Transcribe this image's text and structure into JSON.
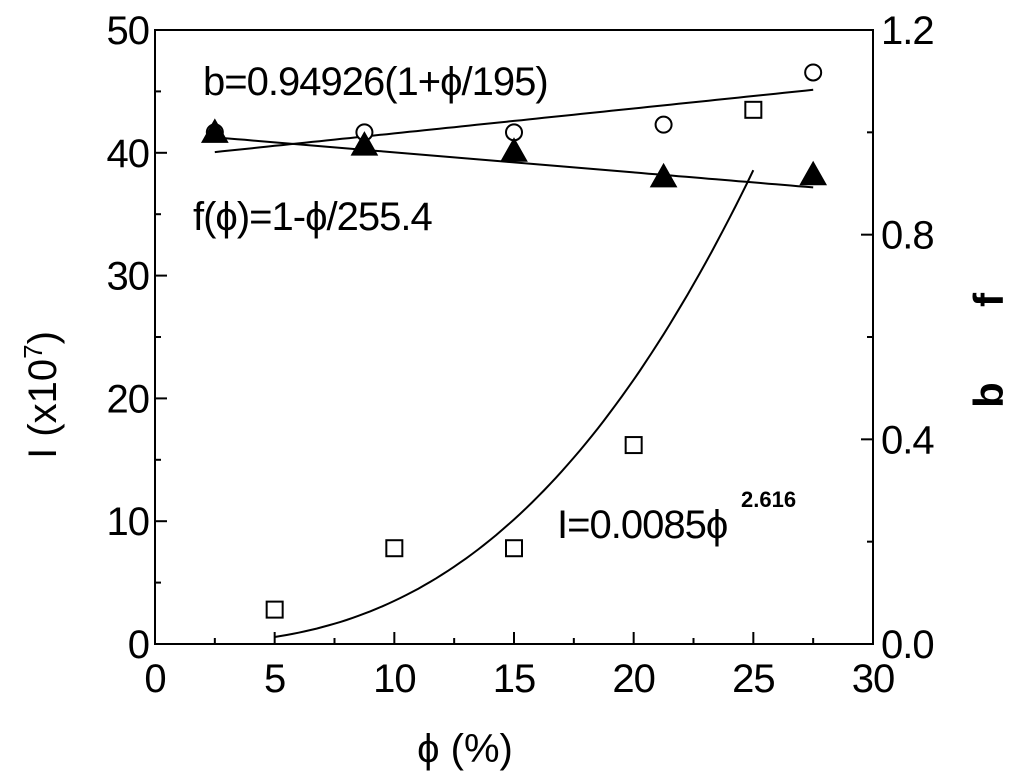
{
  "chart_data": {
    "type": "scatter",
    "xlabel": "ϕ  (%)",
    "ylabel_left": "I  (x10",
    "ylabel_left_sup": "7",
    "ylabel_left_close": ")",
    "ylabel_right_b": "b",
    "ylabel_right_f": "f",
    "xlim": [
      0,
      30
    ],
    "ylim_left": [
      0,
      50
    ],
    "ylim_right": [
      0,
      1.2
    ],
    "x_ticks": [
      "0",
      "5",
      "10",
      "15",
      "20",
      "25",
      "30"
    ],
    "y_left_ticks": [
      "0",
      "10",
      "20",
      "30",
      "40",
      "50"
    ],
    "y_right_ticks": [
      "0.0",
      "0.4",
      "0.8",
      "1.2"
    ],
    "grid": false,
    "series": [
      {
        "axis": "left",
        "marker": "open-square",
        "points": [
          [
            5,
            2.8
          ],
          [
            10,
            7.8
          ],
          [
            15,
            7.8
          ],
          [
            20,
            16.2
          ],
          [
            25,
            43.5
          ]
        ]
      },
      {
        "axis": "right",
        "marker": "open-circle",
        "points": [
          [
            2.5,
            1.0
          ],
          [
            8.75,
            1.0
          ],
          [
            15,
            1.0
          ],
          [
            21.25,
            1.015
          ],
          [
            27.5,
            1.117
          ]
        ]
      },
      {
        "axis": "right",
        "marker": "filled-triangle",
        "points": [
          [
            2.5,
            1.0
          ],
          [
            8.75,
            0.975
          ],
          [
            15,
            0.963
          ],
          [
            21.25,
            0.913
          ],
          [
            27.5,
            0.917
          ]
        ]
      }
    ],
    "fits": [
      {
        "axis": "left",
        "kind": "power",
        "coef": 0.0085,
        "exponent": 2.616,
        "x_range": [
          5,
          25
        ]
      },
      {
        "axis": "right",
        "kind": "linear",
        "a": 0.94926,
        "div": 195,
        "x_range": [
          2.5,
          27.5
        ]
      },
      {
        "axis": "right",
        "kind": "linear-dec",
        "div": 255.4,
        "x_range": [
          2.5,
          27.5
        ]
      }
    ],
    "annotations": {
      "b_fit": "b=0.94926(1+ϕ/195)",
      "f_fit": "f(ϕ)=1-ϕ/255.4",
      "i_fit": "I=0.0085ϕ",
      "i_fit_sup": "2.616"
    }
  }
}
